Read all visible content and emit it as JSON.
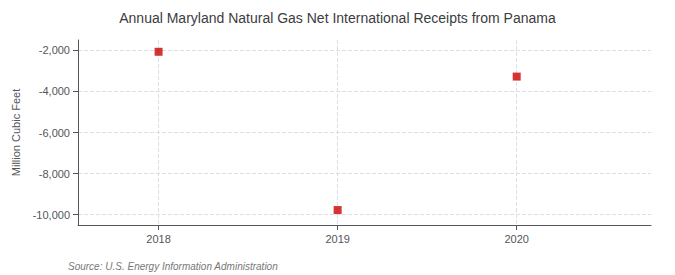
{
  "chart_data": {
    "type": "scatter",
    "title": "Annual Maryland Natural Gas Net International Receipts from Panama",
    "ylabel": "Million Cubic Feet",
    "annotations": [
      "Source: U.S. Energy Information Administration"
    ],
    "x": [
      2018,
      2019,
      2020
    ],
    "values": [
      -2073,
      -9773,
      -3280
    ],
    "color": "#cc0000",
    "marker": "square",
    "xlim": [
      2017.55,
      2020.75
    ],
    "xticks": [
      2018,
      2019,
      2020
    ],
    "ylim": [
      -10500,
      -1500
    ],
    "yticks": [
      {
        "value": -2000,
        "label": "-2,000"
      },
      {
        "value": -4000,
        "label": "-4,000"
      },
      {
        "value": -6000,
        "label": "-6,000"
      },
      {
        "value": -8000,
        "label": "-8,000"
      },
      {
        "value": -10000,
        "label": "-10,000"
      }
    ],
    "grid": true
  }
}
